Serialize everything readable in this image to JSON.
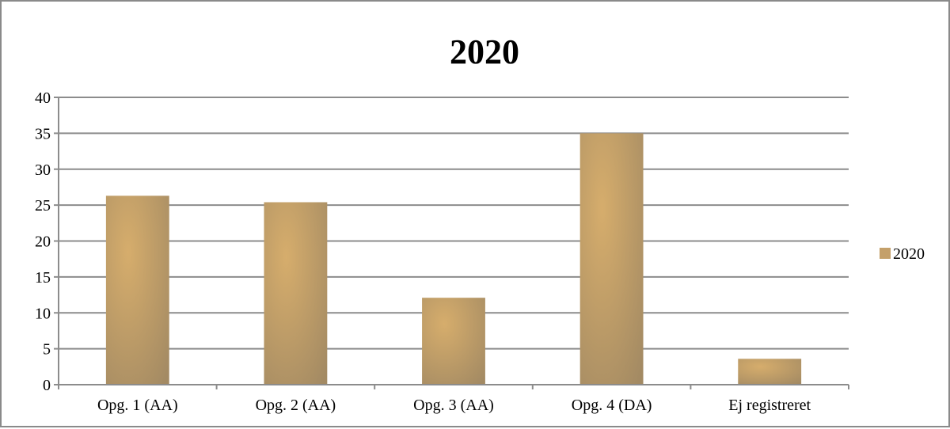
{
  "chart_data": {
    "type": "bar",
    "title": "2020",
    "categories": [
      "Opg. 1 (AA)",
      "Opg. 2 (AA)",
      "Opg. 3 (AA)",
      "Opg. 4 (DA)",
      "Ej registreret"
    ],
    "series": [
      {
        "name": "2020",
        "values": [
          26.3,
          25.4,
          12.1,
          35.0,
          3.6
        ]
      }
    ],
    "ylim": [
      0,
      40
    ],
    "yticks": [
      0,
      5,
      10,
      15,
      20,
      25,
      30,
      35,
      40
    ],
    "grid": true,
    "legend_position": "right",
    "bar_color": "#c4a06a"
  }
}
